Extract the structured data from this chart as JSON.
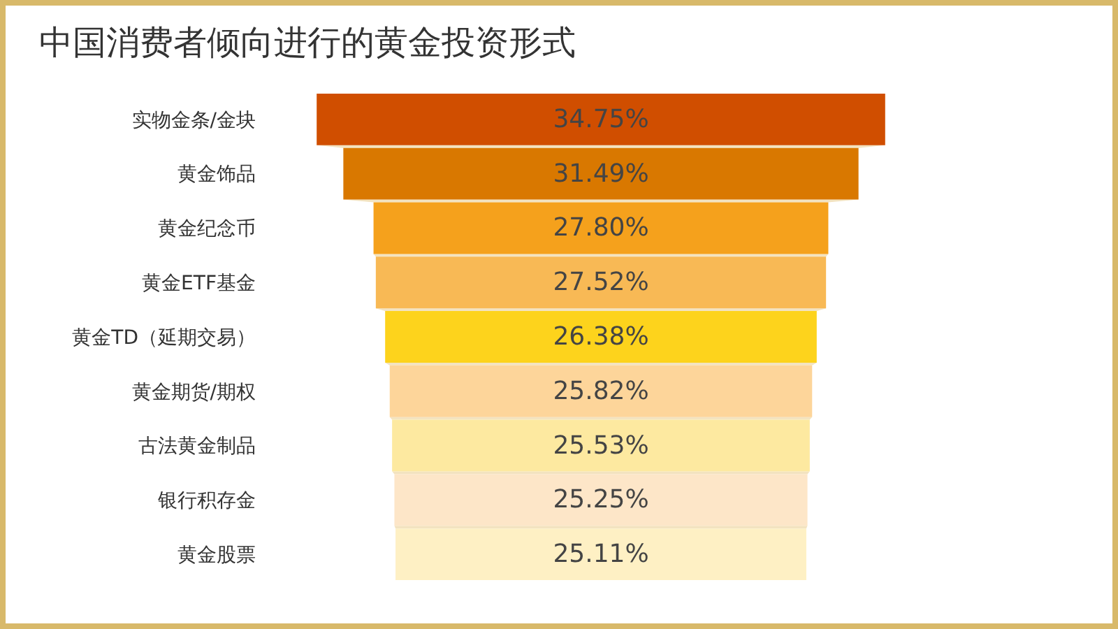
{
  "chart_data": {
    "type": "other",
    "title": "中国消费者倾向进行的黄金投资形式",
    "categories": [
      "实物金条/金块",
      "黄金饰品",
      "黄金纪念币",
      "黄金ETF基金",
      "黄金TD（延期交易）",
      "黄金期货/期权",
      "古法黄金制品",
      "银行积存金",
      "黄金股票"
    ],
    "values": [
      34.75,
      31.49,
      27.8,
      27.52,
      26.38,
      25.82,
      25.53,
      25.25,
      25.11
    ],
    "value_labels": [
      "34.75%",
      "31.49%",
      "27.80%",
      "27.52%",
      "26.38%",
      "25.82%",
      "25.53%",
      "25.25%",
      "25.11%"
    ],
    "colors": [
      "#d04e00",
      "#d97800",
      "#f5a11c",
      "#f8b955",
      "#fdd31c",
      "#fdd59a",
      "#fde9a0",
      "#fde6c8",
      "#fef0c4"
    ]
  }
}
